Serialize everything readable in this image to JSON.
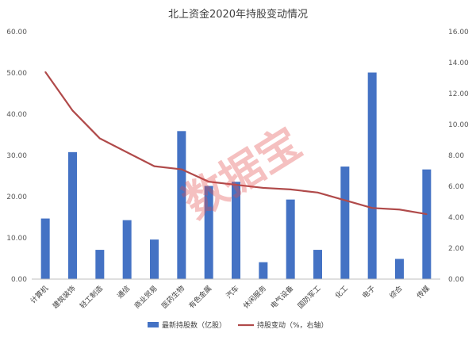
{
  "chart_data": {
    "type": "bar",
    "title": "北上资金2020年持股变动情况",
    "categories": [
      "计算机",
      "建筑装饰",
      "轻工制造",
      "通信",
      "商业贸易",
      "医药生物",
      "有色金属",
      "汽车",
      "休闲服务",
      "电气设备",
      "国防军工",
      "化工",
      "电子",
      "综合",
      "传媒"
    ],
    "series": [
      {
        "name": "最新持股数（亿股）",
        "type": "bar",
        "axis": "left",
        "color": "#4472c4",
        "values": [
          14.7,
          30.8,
          7.1,
          14.3,
          9.6,
          35.9,
          22.6,
          23.6,
          4.1,
          19.3,
          7.1,
          27.3,
          50.1,
          4.9,
          26.6
        ]
      },
      {
        "name": "持股变动（%，右轴）",
        "type": "line",
        "axis": "right",
        "color": "#b04a4a",
        "values": [
          13.4,
          10.9,
          9.1,
          8.2,
          7.3,
          7.1,
          6.3,
          6.1,
          5.9,
          5.8,
          5.6,
          5.1,
          4.6,
          4.5,
          4.2
        ]
      }
    ],
    "y_left": {
      "ylim": [
        0,
        60
      ],
      "ticks": [
        "0.00",
        "10.00",
        "20.00",
        "30.00",
        "40.00",
        "50.00",
        "60.00"
      ]
    },
    "y_right": {
      "ylim": [
        0,
        16
      ],
      "ticks": [
        "0.00",
        "2.00",
        "4.00",
        "6.00",
        "8.00",
        "10.00",
        "12.00",
        "14.00",
        "16.00"
      ]
    },
    "grid": false,
    "legend_position": "bottom",
    "watermark": "数据宝",
    "colors": {
      "bar": "#4472c4",
      "line": "#b04a4a",
      "axis": "#bfbfbf",
      "text": "#595959"
    }
  }
}
